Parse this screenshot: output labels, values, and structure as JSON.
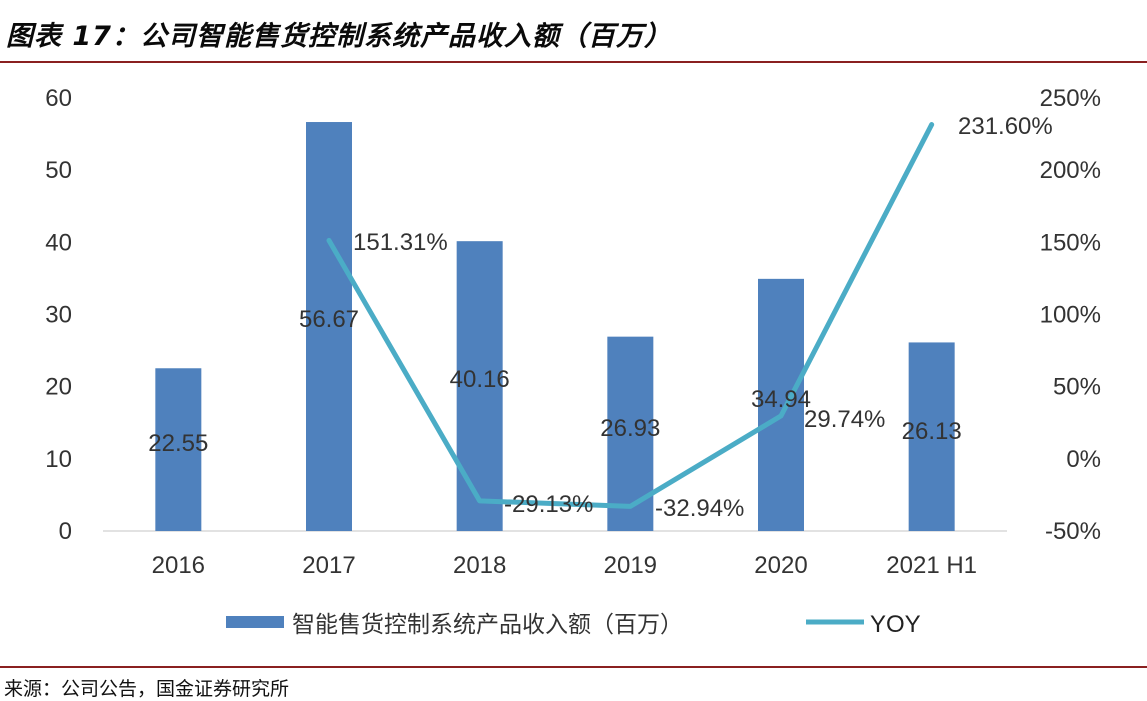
{
  "header": {
    "title": "图表 17：公司智能售货控制系统产品收入额（百万）"
  },
  "footer": {
    "source": "来源：公司公告，国金证券研究所"
  },
  "colors": {
    "bar": "#4f81bd",
    "line": "#4bacc6",
    "text": "#333333",
    "rule": "#8a2020"
  },
  "chart_data": {
    "type": "bar",
    "title": "图表 17：公司智能售货控制系统产品收入额（百万）",
    "categories": [
      "2016",
      "2017",
      "2018",
      "2019",
      "2020",
      "2021 H1"
    ],
    "series": [
      {
        "name": "智能售货控制系统产品收入额（百万）",
        "type": "bar",
        "axis": "left",
        "values": [
          22.55,
          56.67,
          40.16,
          26.93,
          34.94,
          26.13
        ],
        "labels": [
          "22.55",
          "56.67",
          "40.16",
          "26.93",
          "34.94",
          "26.13"
        ]
      },
      {
        "name": "YOY",
        "type": "line",
        "axis": "right",
        "values": [
          null,
          151.31,
          -29.13,
          -32.94,
          29.74,
          231.6
        ],
        "labels": [
          "",
          "151.31%",
          "-29.13%",
          "-32.94%",
          "29.74%",
          "231.60%"
        ]
      }
    ],
    "y_left": {
      "min": 0,
      "max": 60,
      "ticks": [
        "0",
        "10",
        "20",
        "30",
        "40",
        "50",
        "60"
      ]
    },
    "y_right": {
      "min": -50,
      "max": 250,
      "ticks": [
        "-50%",
        "0%",
        "50%",
        "100%",
        "150%",
        "200%",
        "250%"
      ]
    },
    "legend": {
      "position": "bottom",
      "items": [
        "智能售货控制系统产品收入额（百万）",
        "YOY"
      ]
    },
    "grid": false
  }
}
